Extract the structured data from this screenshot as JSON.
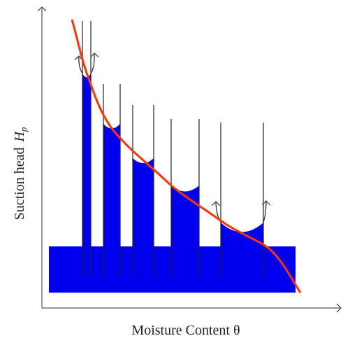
{
  "y_axis": {
    "label": "Suction head",
    "symbol": "H",
    "subscript": "p"
  },
  "x_axis": {
    "label": "Moisture Content θ"
  }
}
